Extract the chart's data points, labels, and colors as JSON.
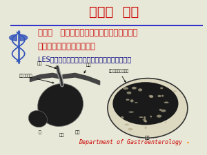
{
  "bg_color": "#e8e8d8",
  "title": "第一章  总论",
  "title_color": "#cc0000",
  "title_fontsize": 14,
  "separator_color": "#3333cc",
  "line1": "第一节   常见疾病相关的消化生理、生化功能",
  "line2": "生理性食管抗反流防御机制",
  "line_color": "#cc0000",
  "line_fontsize": 8.5,
  "subtitle": "LES、膈肌脚、膈食管韧带、食管与胃之间的锐角",
  "subtitle_color": "#000080",
  "subtitle_fontsize": 7,
  "footer": "Department of Gastroenterology",
  "footer_color": "#cc0000",
  "footer_fontsize": 6
}
